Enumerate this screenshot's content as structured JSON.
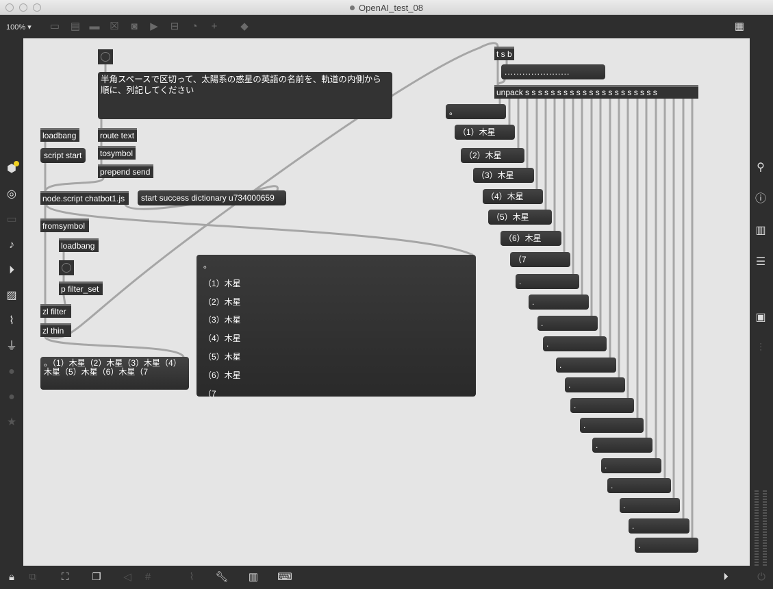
{
  "window": {
    "title": "OpenAI_test_08"
  },
  "toolbar": {
    "zoom": "100%",
    "icons": [
      "patcher-window-icon",
      "message-icon",
      "comment-icon",
      "toggle-icon",
      "button-icon",
      "play-icon",
      "slider-icon",
      "dial-icon",
      "plus-icon",
      "paint-bucket-icon"
    ],
    "grid": "grid-icon"
  },
  "left_sidebar": [
    "package-icon",
    "target-icon",
    "keyboard-icon",
    "music-note-icon",
    "media-icon",
    "image-icon",
    "paperclip-icon",
    "plug-icon",
    "vimeo-icon",
    "b-icon",
    "star-icon"
  ],
  "right_sidebar": [
    "search-icon",
    "info-icon",
    "book-icon",
    "list-icon",
    "snapshot-icon",
    "mixer-icon"
  ],
  "bottom_bar": [
    "lock-icon",
    "presentation-icon",
    "present-icon",
    "windows-icon",
    "mute-icon",
    "grid-icon",
    "attach-icon",
    "wrench-icon",
    "piano-icon",
    "keyboard-icon",
    "transport-icon",
    "power-icon"
  ],
  "patch": {
    "prompt": "半角スペースで区切って、太陽系の惑星の英語の名前を、軌道の内側から順に、列記してください",
    "loadbang1": "loadbang",
    "route": "route text",
    "script_start": "script start",
    "tosymbol": "tosymbol",
    "prepend": "prepend send",
    "node_script": "node.script chatbot1.js",
    "status_msg": "start success dictionary u734000659",
    "fromsymbol": "fromsymbol",
    "loadbang2": "loadbang",
    "filter_set": "p filter_set",
    "zl_filter": "zl filter",
    "zl_thin": "zl thin",
    "result_msg": "。（1）木星（2）木星（3）木星（4）木星（5）木星（6）木星（7",
    "result_lines": [
      "。",
      "（1）木星",
      "（2）木星",
      "（3）木星",
      "（4）木星",
      "（5）木星",
      "（6）木星",
      "（7"
    ],
    "tsb": "t s b",
    "dots_msg": "......................",
    "unpack": "unpack s s s s s s s s s s s s s s s s s s s s s",
    "unpack_msgs": [
      "。",
      "（1）木星",
      "（2）木星",
      "（3）木星",
      "（4）木星",
      "（5）木星",
      "（6）木星",
      "（7",
      ".",
      ".",
      ".",
      ".",
      ".",
      ".",
      ".",
      ".",
      ".",
      ".",
      ".",
      ".",
      ".",
      "."
    ]
  },
  "colors": {
    "canvas": "#e5e5e5",
    "chrome": "#2e2e2e",
    "object": "#333333",
    "cable": "#a6a6a6"
  }
}
